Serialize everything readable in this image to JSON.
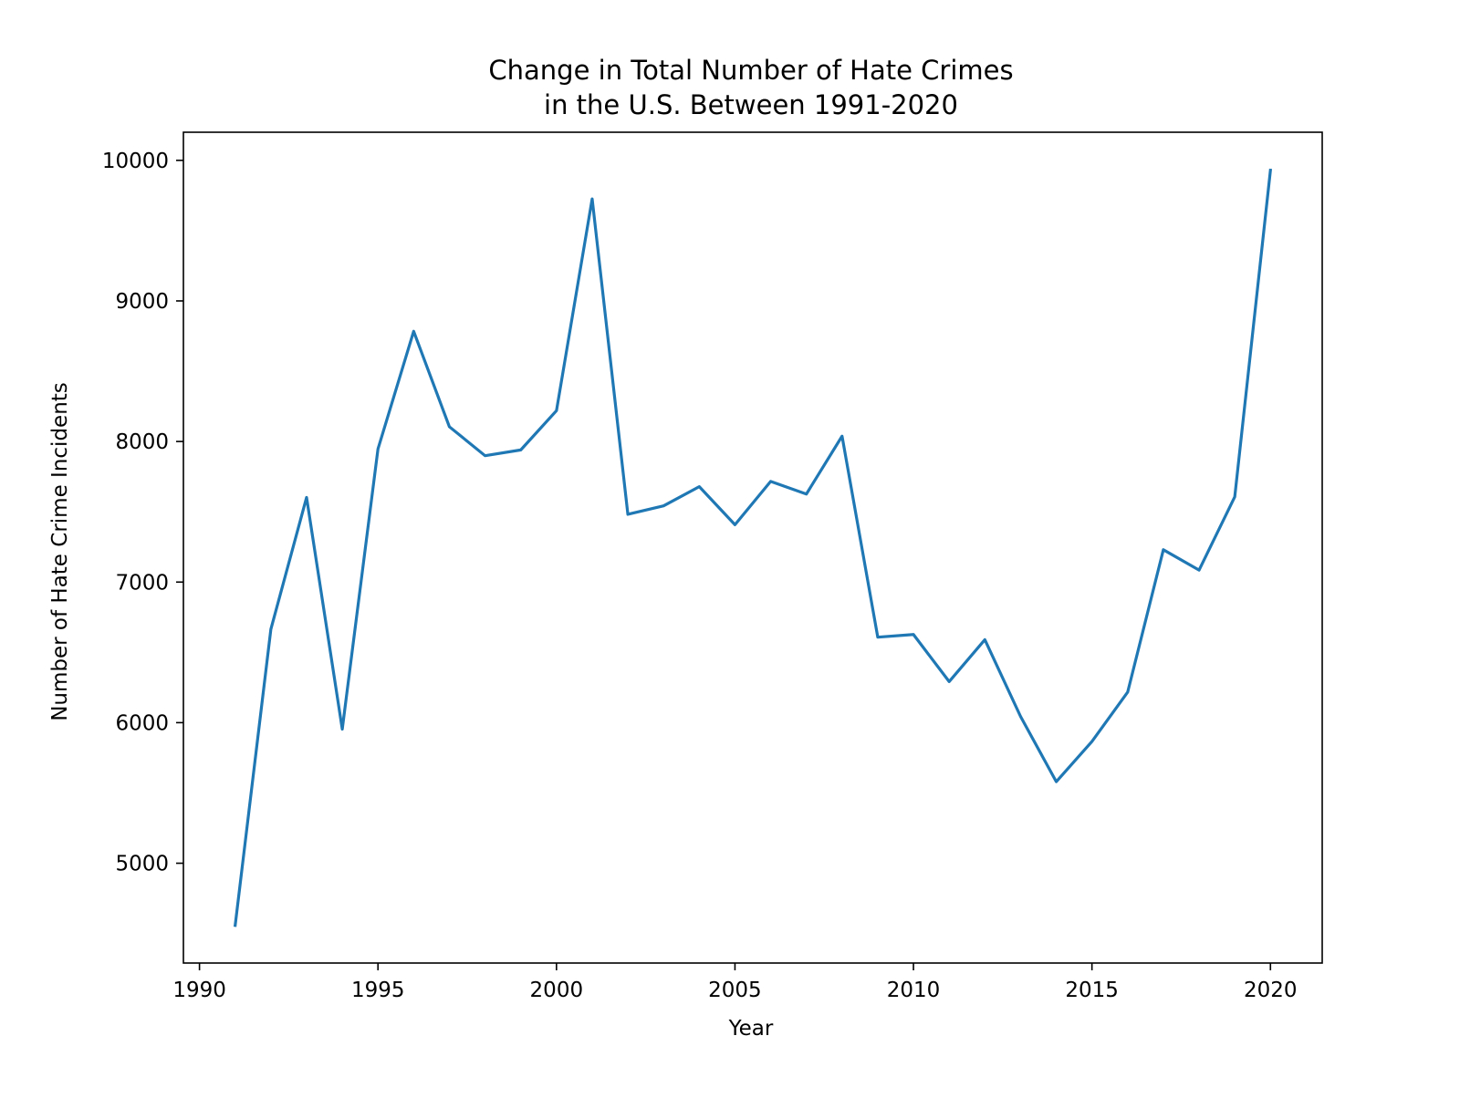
{
  "chart_data": {
    "type": "line",
    "title": [
      "Change in Total Number of Hate Crimes",
      "in the U.S. Between 1991-2020"
    ],
    "xlabel": "Year",
    "ylabel": "Number of Hate Crime Incidents",
    "xlim": [
      1989.55,
      2021.45
    ],
    "ylim": [
      4290,
      10200
    ],
    "xticks": [
      1990,
      1995,
      2000,
      2005,
      2010,
      2015,
      2020
    ],
    "yticks": [
      5000,
      6000,
      7000,
      8000,
      9000,
      10000
    ],
    "grid": false,
    "line_color": "#1f77b4",
    "series": [
      {
        "x": [
          1991,
          1992,
          1993,
          1994,
          1995,
          1996,
          1997,
          1998,
          1999,
          2000,
          2001,
          2002,
          2003,
          2004,
          2005,
          2006,
          2007,
          2008,
          2009,
          2010,
          2011,
          2012,
          2013,
          2014,
          2015,
          2016,
          2017,
          2018,
          2019,
          2020
        ],
        "values": [
          4558,
          6665,
          7602,
          5954,
          7947,
          8784,
          8105,
          7899,
          7940,
          8219,
          9726,
          7482,
          7542,
          7679,
          7408,
          7716,
          7626,
          8038,
          6608,
          6627,
          6292,
          6590,
          6044,
          5580,
          5866,
          6217,
          7230,
          7085,
          7606,
          9930
        ]
      }
    ]
  }
}
